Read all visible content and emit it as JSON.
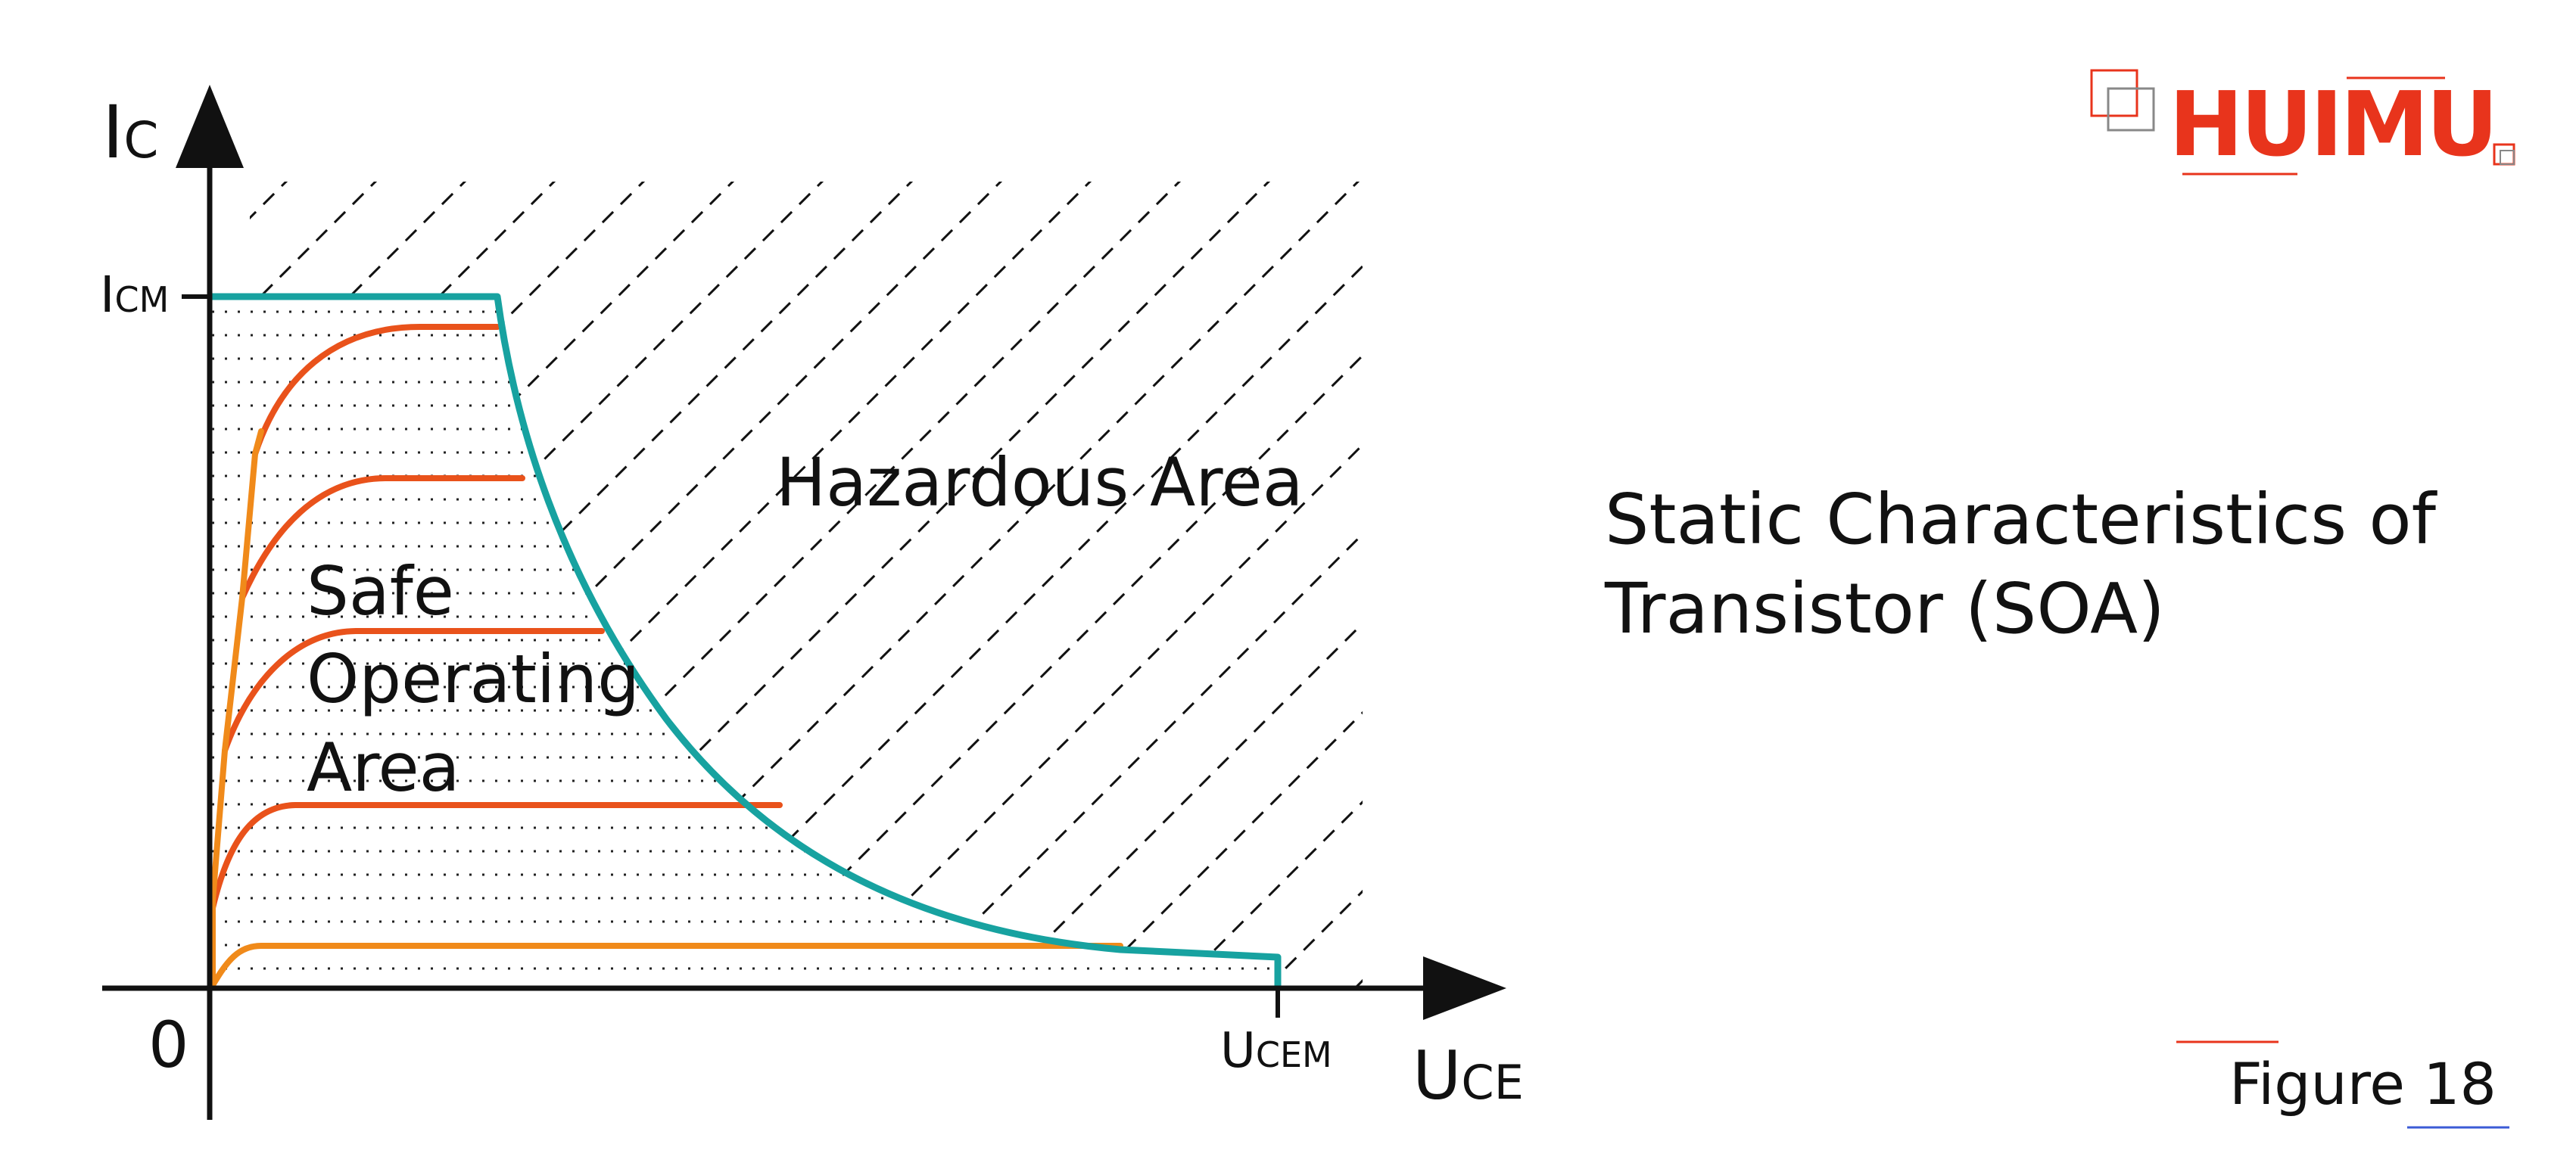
{
  "diagram": {
    "axis_y_main": "I",
    "axis_y_sub": "C",
    "axis_x_main": "U",
    "axis_x_sub": "CE",
    "origin": "0",
    "icm_main": "I",
    "icm_sub": "CM",
    "ucem_main": "U",
    "ucem_sub": "CEM",
    "hazard_label": "Hazardous Area",
    "safe_label_lines": [
      "Safe",
      "Operating",
      "Area"
    ]
  },
  "title": {
    "line1": "Static Characteristics of",
    "line2": "Transistor (SOA)"
  },
  "logo": {
    "text": "HUIMU"
  },
  "caption": {
    "figure": "Figure 18"
  },
  "colors": {
    "soa_boundary": "#17a2a0",
    "curve_red": "#e9521b",
    "curve_orange": "#f08a1a",
    "logo_red": "#e8341c"
  }
}
